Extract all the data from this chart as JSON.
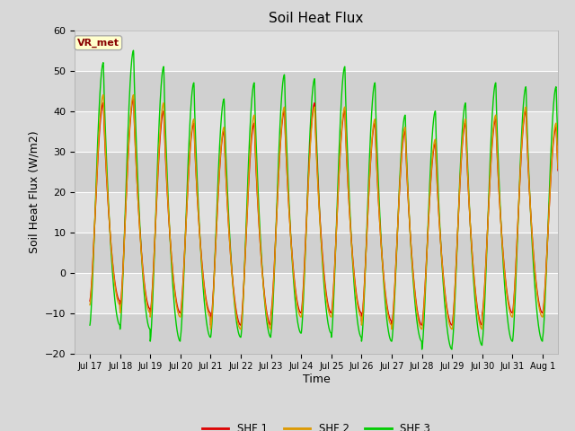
{
  "title": "Soil Heat Flux",
  "xlabel": "Time",
  "ylabel": "Soil Heat Flux (W/m2)",
  "ylim": [
    -20,
    60
  ],
  "background_color": "#d8d8d8",
  "plot_bg_color": "#d8d8d8",
  "grid_color": "#ffffff",
  "colors": {
    "SHF 1": "#dd0000",
    "SHF 2": "#dd9900",
    "SHF 3": "#00cc00"
  },
  "legend_entries": [
    "SHF 1",
    "SHF 2",
    "SHF 3"
  ],
  "annotation_text": "VR_met",
  "annotation_color": "#880000",
  "annotation_bg": "#ffffcc",
  "annotation_border": "#aaaaaa",
  "tick_labels": [
    "Jul 17",
    "Jul 18",
    "Jul 19",
    "Jul 20",
    "Jul 21",
    "Jul 22",
    "Jul 23",
    "Jul 24",
    "Jul 25",
    "Jul 26",
    "Jul 27",
    "Jul 28",
    "Jul 29",
    "Jul 30",
    "Jul 31",
    "Aug 1"
  ],
  "num_days": 16,
  "daily_peaks_shf1": [
    42,
    43,
    40,
    37,
    35,
    37,
    40,
    42,
    40,
    37,
    35,
    32,
    37,
    38,
    40,
    36
  ],
  "daily_peaks_shf2": [
    44,
    44,
    42,
    38,
    36,
    39,
    41,
    41,
    41,
    38,
    36,
    33,
    38,
    39,
    41,
    37
  ],
  "daily_peaks_shf3": [
    52,
    55,
    51,
    47,
    43,
    47,
    49,
    48,
    51,
    47,
    39,
    40,
    42,
    47,
    46,
    46
  ],
  "daily_troughs_shf1": [
    -7,
    -9,
    -10,
    -10,
    -13,
    -13,
    -10,
    -10,
    -10,
    -12,
    -13,
    -13,
    -13,
    -10,
    -10,
    -10
  ],
  "daily_troughs_shf2": [
    -8,
    -10,
    -11,
    -11,
    -14,
    -14,
    -11,
    -11,
    -11,
    -13,
    -14,
    -14,
    -14,
    -11,
    -11,
    -11
  ],
  "daily_troughs_shf3": [
    -13,
    -14,
    -17,
    -16,
    -16,
    -16,
    -15,
    -15,
    -16,
    -17,
    -17,
    -19,
    -18,
    -17,
    -17,
    -16
  ],
  "linewidth": 1.0
}
